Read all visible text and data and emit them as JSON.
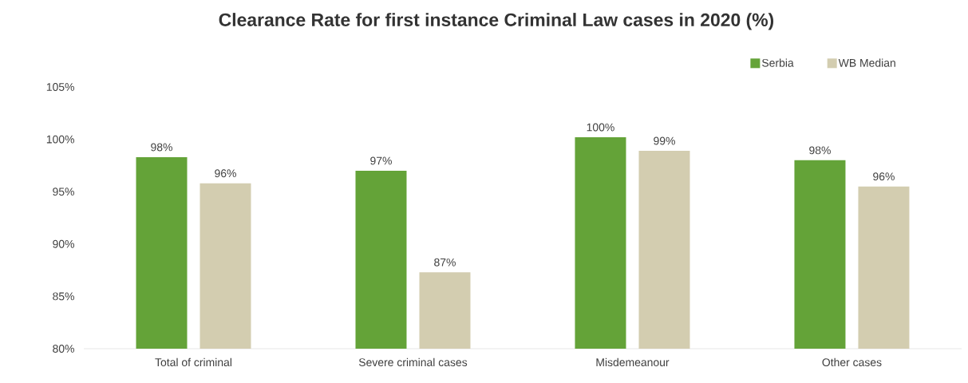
{
  "chart_data": {
    "type": "bar",
    "title": "Clearance Rate for first instance Criminal Law cases in 2020 (%)",
    "categories": [
      "Total of criminal",
      "Severe criminal cases",
      "Misdemeanour",
      "Other cases"
    ],
    "series": [
      {
        "name": "Serbia",
        "color": "#64a338",
        "values": [
          98.3,
          97.0,
          100.2,
          98.0
        ],
        "value_labels": [
          "98%",
          "97%",
          "100%",
          "98%"
        ]
      },
      {
        "name": "WB Median",
        "color": "#d3cdb0",
        "values": [
          95.8,
          87.3,
          98.9,
          95.5
        ],
        "value_labels": [
          "96%",
          "87%",
          "99%",
          "96%"
        ]
      }
    ],
    "ylim": [
      80,
      105
    ],
    "yticks": [
      {
        "value": 80,
        "label": "80%"
      },
      {
        "value": 85,
        "label": "85%"
      },
      {
        "value": 90,
        "label": "90%"
      },
      {
        "value": 95,
        "label": "95%"
      },
      {
        "value": 100,
        "label": "100%"
      },
      {
        "value": 105,
        "label": "105%"
      }
    ],
    "grid": false,
    "legend": "top right"
  }
}
